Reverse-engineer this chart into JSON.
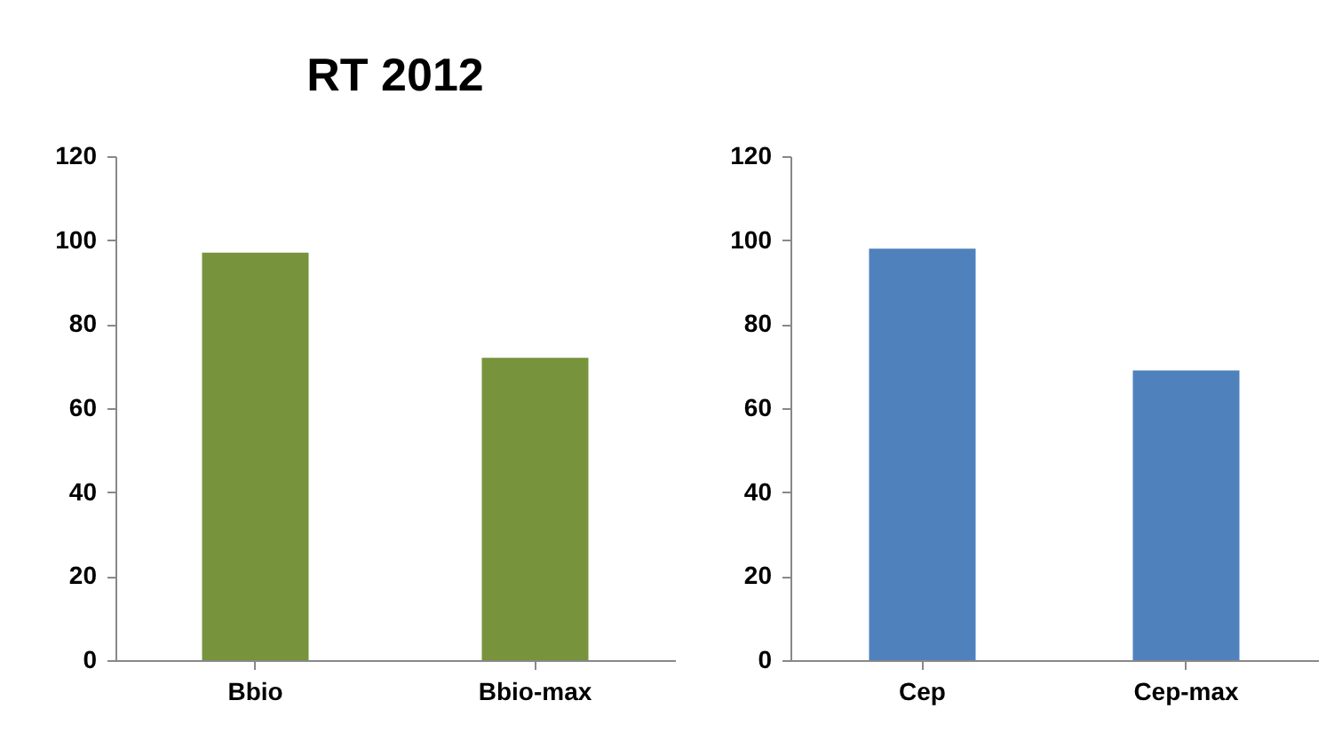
{
  "chart_data": [
    {
      "type": "bar",
      "title": "RT 2012",
      "categories": [
        "Bbio",
        "Bbio-max"
      ],
      "values": [
        97,
        72
      ],
      "color": "#77933c",
      "ylim": [
        0,
        120
      ],
      "yticks": [
        0,
        20,
        40,
        60,
        80,
        100,
        120
      ],
      "grid": false
    },
    {
      "type": "bar",
      "categories": [
        "Cep",
        "Cep-max"
      ],
      "values": [
        98,
        69
      ],
      "color": "#4f81bd",
      "ylim": [
        0,
        120
      ],
      "yticks": [
        0,
        20,
        40,
        60,
        80,
        100,
        120
      ],
      "grid": false
    }
  ]
}
